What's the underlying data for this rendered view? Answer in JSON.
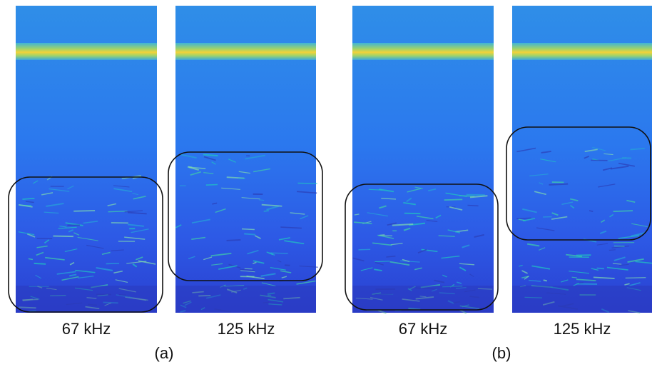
{
  "groups": [
    {
      "label": "(a)",
      "panels": [
        {
          "label": "67 kHz"
        },
        {
          "label": "125 kHz"
        }
      ]
    },
    {
      "label": "(b)",
      "panels": [
        {
          "label": "67 kHz"
        },
        {
          "label": "125 kHz"
        }
      ]
    }
  ]
}
